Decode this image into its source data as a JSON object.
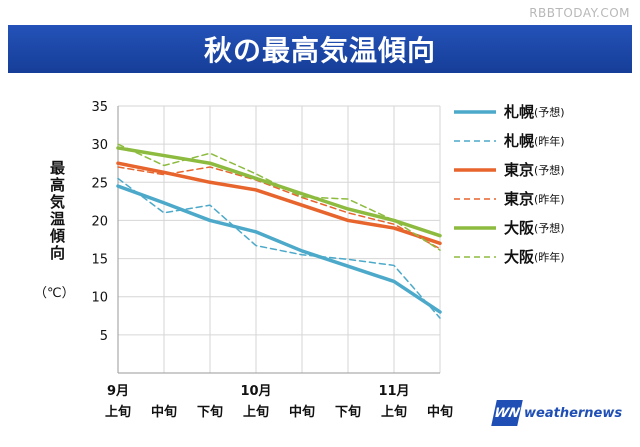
{
  "watermark": "RBBTODAY.COM",
  "title": "秋の最高気温傾向",
  "y_axis_label": "最高気温傾向",
  "y_axis_unit": "（℃）",
  "logo": {
    "mark": "WN",
    "text": "weathernews"
  },
  "chart_data": {
    "type": "line",
    "categories": [
      "9月\n上旬",
      "中旬",
      "下旬",
      "10月\n上旬",
      "中旬",
      "下旬",
      "11月\n上旬",
      "中旬"
    ],
    "yticks": [
      5,
      10,
      15,
      20,
      25,
      30,
      35
    ],
    "ylim": [
      0,
      35
    ],
    "grid": true,
    "legend_position": "right",
    "series": [
      {
        "name": "札幌",
        "tag": "(予想)",
        "color": "#4ca9c9",
        "dashed": false,
        "values": [
          24.5,
          22.3,
          20.0,
          18.5,
          16.0,
          14.0,
          12.0,
          8.0
        ]
      },
      {
        "name": "札幌",
        "tag": "(昨年)",
        "color": "#4ca9c9",
        "dashed": true,
        "values": [
          25.5,
          21.0,
          22.0,
          16.7,
          15.5,
          14.9,
          14.1,
          7.2
        ]
      },
      {
        "name": "東京",
        "tag": "(予想)",
        "color": "#e8642d",
        "dashed": false,
        "values": [
          27.5,
          26.3,
          25.0,
          24.0,
          22.0,
          20.0,
          19.0,
          17.0
        ]
      },
      {
        "name": "東京",
        "tag": "(昨年)",
        "color": "#e8642d",
        "dashed": true,
        "values": [
          27.0,
          26.0,
          27.0,
          25.3,
          23.0,
          21.0,
          19.5,
          16.3
        ]
      },
      {
        "name": "大阪",
        "tag": "(予想)",
        "color": "#8dbb3f",
        "dashed": false,
        "values": [
          29.5,
          28.5,
          27.5,
          25.5,
          23.5,
          21.5,
          20.0,
          18.0
        ]
      },
      {
        "name": "大阪",
        "tag": "(昨年)",
        "color": "#8dbb3f",
        "dashed": true,
        "values": [
          30.0,
          27.2,
          28.8,
          26.1,
          23.1,
          22.8,
          20.0,
          16.1
        ]
      }
    ]
  }
}
